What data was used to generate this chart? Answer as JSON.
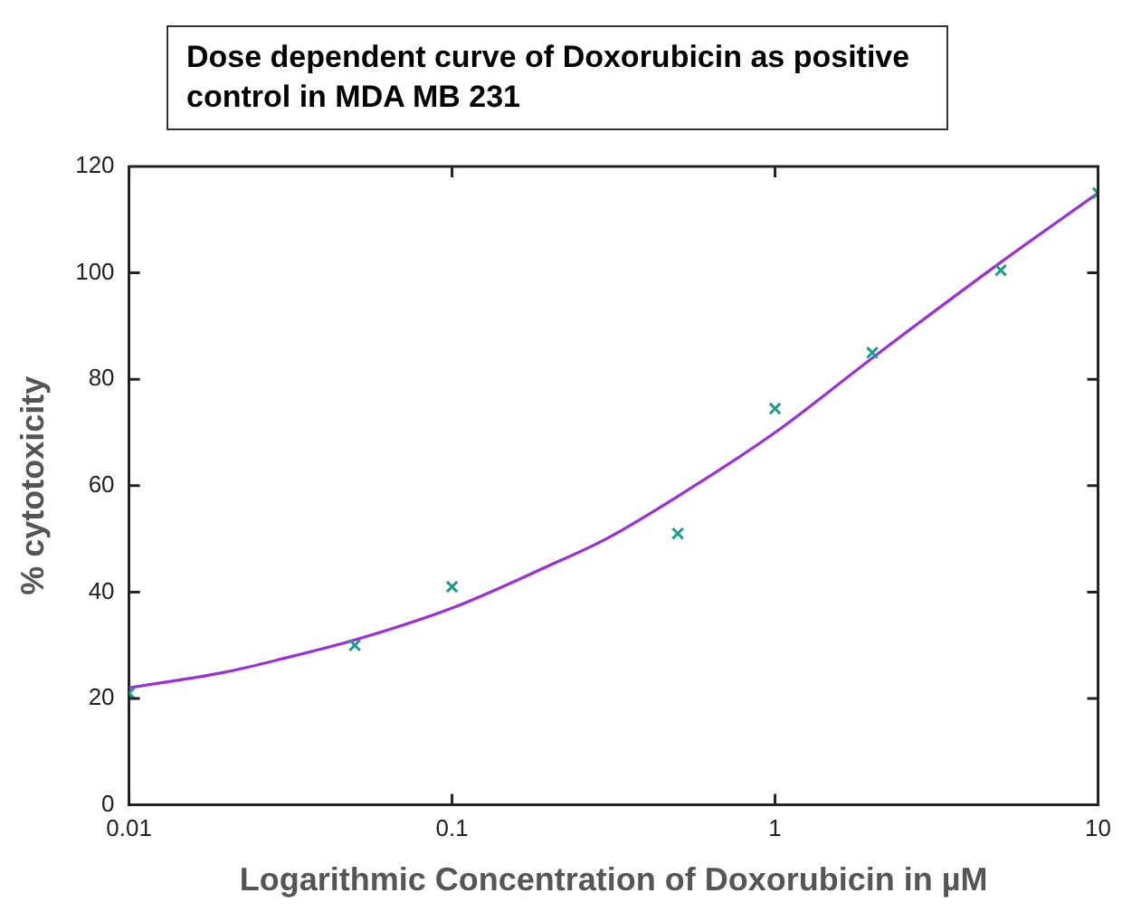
{
  "chart_data": {
    "type": "scatter",
    "title": "Dose dependent curve of Doxorubicin as positive control  in MDA MB 231",
    "xlabel": "Logarithmic Concentration of Doxorubicin in µM",
    "ylabel": "% cytotoxicity",
    "log": "x",
    "xlim": [
      0.01,
      10
    ],
    "xticks": [
      0.01,
      0.1,
      1,
      10
    ],
    "ylim": [
      0,
      120
    ],
    "yticks": [
      0,
      20,
      40,
      60,
      80,
      100,
      120
    ],
    "grid": false,
    "legend": false,
    "series": [
      {
        "color": "#1a9e8a",
        "marker": "cross",
        "x": [
          0.01,
          0.05,
          0.1,
          0.5,
          1,
          2,
          5,
          10
        ],
        "values": [
          21,
          30,
          41,
          51,
          74.5,
          85,
          100.5,
          115
        ]
      },
      {
        "type": "line",
        "color": "#9b30d9",
        "marker": "none",
        "line_style": "solid",
        "x": [
          0.01,
          0.02,
          0.03,
          0.05,
          0.1,
          0.2,
          0.3,
          0.5,
          1,
          2,
          5,
          10
        ],
        "values": [
          22,
          25,
          27.5,
          31,
          37,
          45,
          50,
          58,
          70,
          84,
          102,
          115
        ]
      }
    ]
  }
}
